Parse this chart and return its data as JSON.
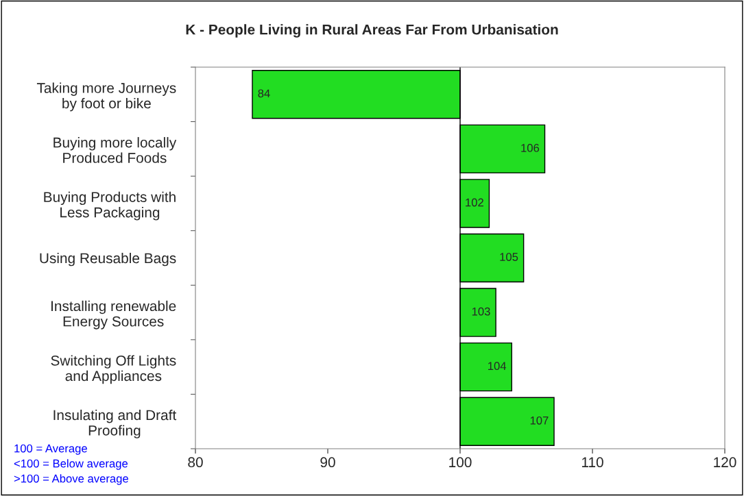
{
  "chart_data": {
    "type": "bar",
    "orientation": "horizontal",
    "title": "K - People Living in Rural Areas Far From Urbanisation",
    "categories": [
      "Taking more Journeys\nby foot or bike",
      "Buying more locally\nProduced Foods",
      "Buying Products with\nLess Packaging",
      "Using Reusable Bags",
      "Installing renewable\nEnergy Sources",
      "Switching Off Lights\nand Appliances",
      "Insulating and Draft\nProofing"
    ],
    "base": [
      100,
      100,
      100,
      100,
      100,
      100,
      100
    ],
    "values": [
      -15.7,
      6.4,
      2.2,
      4.8,
      2.7,
      3.9,
      7.1
    ],
    "value_labels": [
      "84",
      "106",
      "102",
      "105",
      "103",
      "104",
      "107"
    ],
    "color": "#22dd22",
    "xlim": [
      80,
      120
    ],
    "xticks": [
      80,
      90,
      100,
      110,
      120
    ],
    "grid": false,
    "ref_lines": [
      {
        "axis": "x",
        "value": 100
      }
    ],
    "legend": false,
    "annotations": [
      "100 = Average",
      "<100 = Below average",
      ">100 = Above average"
    ]
  }
}
